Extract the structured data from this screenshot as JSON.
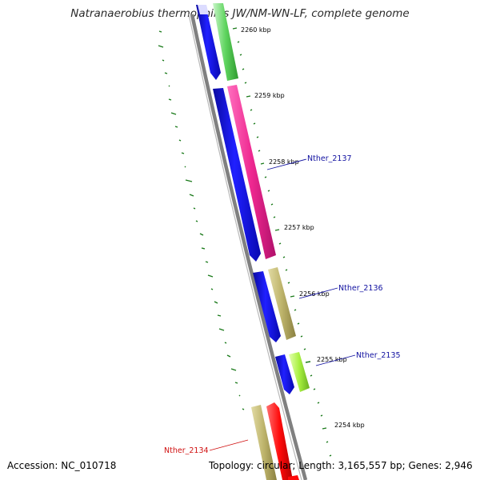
{
  "title": "Natranaerobius thermophilus JW/NM-WN-LF, complete genome",
  "accession": "Accession: NC_010718",
  "summary": "Topology: circular; Length: 3,165,557 bp; Genes: 2,946",
  "ticks": [
    {
      "label": "2260 kbp"
    },
    {
      "label": "2259 kbp"
    },
    {
      "label": "2258 kbp"
    },
    {
      "label": "2257 kbp"
    },
    {
      "label": "2256 kbp"
    },
    {
      "label": "2255 kbp"
    },
    {
      "label": "2254 kbp"
    }
  ],
  "gene_labels": [
    {
      "name": "Nther_2137",
      "color": "#1010a0"
    },
    {
      "name": "Nther_2136",
      "color": "#1010a0"
    },
    {
      "name": "Nther_2135",
      "color": "#1010a0"
    },
    {
      "name": "Nther_2134",
      "color": "#d01010"
    }
  ],
  "colors": {
    "backbone": "#808080",
    "cds": "#1a1aee",
    "tick": "#1a7a1a",
    "gene_lightgreen": "#60d060",
    "gene_magenta": "#ee2890",
    "gene_khaki": "#bdb36a",
    "gene_lime": "#a8f040",
    "gene_red": "#ff0a0a"
  }
}
